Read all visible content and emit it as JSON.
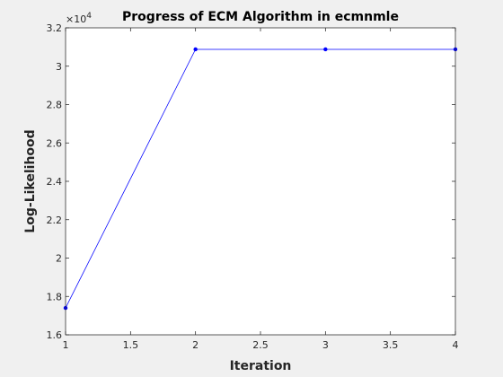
{
  "chart_data": {
    "type": "line",
    "title": "Progress of ECM Algorithm in ecmnmle",
    "xlabel": "Iteration",
    "ylabel": "Log-Likelihood",
    "xlim": [
      1,
      4
    ],
    "ylim": [
      16000,
      32000
    ],
    "x_ticks": [
      1,
      1.5,
      2,
      2.5,
      3,
      3.5,
      4
    ],
    "x_tick_labels": [
      "1",
      "1.5",
      "2",
      "2.5",
      "3",
      "3.5",
      "4"
    ],
    "y_ticks": [
      16000,
      18000,
      20000,
      22000,
      24000,
      26000,
      28000,
      30000,
      32000
    ],
    "y_tick_labels": [
      "1.6",
      "1.8",
      "2",
      "2.2",
      "2.4",
      "2.6",
      "2.8",
      "3",
      "3.2"
    ],
    "y_exponent_base": "×10",
    "y_exponent_power": "4",
    "grid": false,
    "legend": "none",
    "series": [
      {
        "x": [
          1,
          2,
          3,
          4
        ],
        "values": [
          17400,
          30880,
          30880,
          30880
        ],
        "color": "#0000ff",
        "marker": "dot"
      }
    ]
  },
  "colors": {
    "figure_background": "#f0f0f0",
    "axes_background": "#ffffff",
    "axes_color": "#262626"
  }
}
